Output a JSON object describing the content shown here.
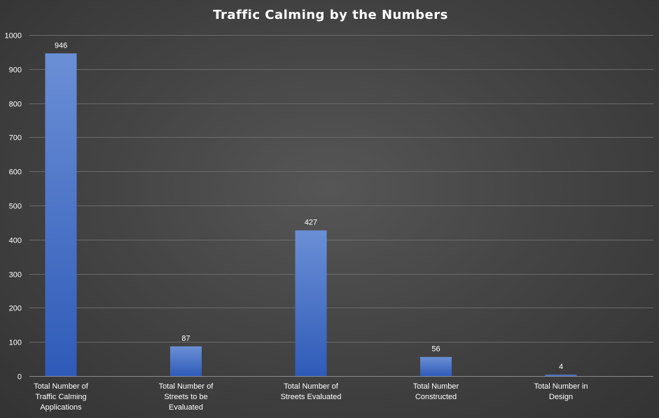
{
  "chart_data": {
    "type": "bar",
    "title": "Traffic Calming by the Numbers",
    "categories": [
      [
        "Total Number of",
        "Traffic Calming",
        "Applications"
      ],
      [
        "Total Number of",
        "Streets to be",
        "Evaluated"
      ],
      [
        "Total Number of",
        "Streets Evaluated"
      ],
      [
        "Total Number",
        "Constructed"
      ],
      [
        "Total Number in",
        "Design"
      ]
    ],
    "values": [
      946,
      87,
      427,
      56,
      4
    ],
    "data_labels": [
      "946",
      "87",
      "427",
      "56",
      "4"
    ],
    "ylim": [
      0,
      1000
    ],
    "yticks": [
      0,
      100,
      200,
      300,
      400,
      500,
      600,
      700,
      800,
      900,
      1000
    ],
    "xlabel": "",
    "ylabel": "",
    "grid": true,
    "legend": "none",
    "colors": {
      "bar_top": "#6b8fd6",
      "bar_bottom": "#2f5bb8"
    }
  }
}
